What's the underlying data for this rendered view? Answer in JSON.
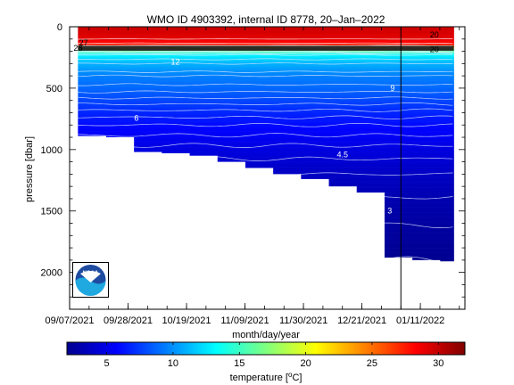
{
  "chart_data": {
    "type": "heatmap",
    "title": "WMO ID 4903392, internal ID 8778, 20–Jan–2022",
    "xlabel": "month/day/year",
    "ylabel": "pressure [dbar]",
    "colorbar_label_text": "temperature [",
    "colorbar_label_sup": "o",
    "colorbar_label_unit": "C]",
    "x_range": [
      "2021-09-07",
      "2022-01-27"
    ],
    "x_ticks": [
      "09/07/2021",
      "09/28/2021",
      "10/19/2021",
      "11/09/2021",
      "11/30/2021",
      "12/21/2021",
      "01/11/2022"
    ],
    "y_range": [
      2300,
      0
    ],
    "y_ticks": [
      0,
      500,
      1000,
      1500,
      2000
    ],
    "color_range": [
      2,
      32
    ],
    "colorbar_ticks": [
      5,
      10,
      15,
      20,
      25,
      30
    ],
    "colormap": "jet",
    "series": [
      {
        "start": "2021-09-10",
        "max_depth": 890
      },
      {
        "start": "2021-09-20",
        "max_depth": 900
      },
      {
        "start": "2021-09-30",
        "max_depth": 1020
      },
      {
        "start": "2021-10-10",
        "max_depth": 1030
      },
      {
        "start": "2021-10-20",
        "max_depth": 1050
      },
      {
        "start": "2021-10-30",
        "max_depth": 1100
      },
      {
        "start": "2021-11-09",
        "max_depth": 1150
      },
      {
        "start": "2021-11-19",
        "max_depth": 1200
      },
      {
        "start": "2021-11-29",
        "max_depth": 1240
      },
      {
        "start": "2021-12-09",
        "max_depth": 1300
      },
      {
        "start": "2021-12-19",
        "max_depth": 1350
      },
      {
        "start": "2021-12-29",
        "max_depth": 1880
      },
      {
        "start": "2022-01-08",
        "max_depth": 1900
      },
      {
        "start": "2022-01-18",
        "end": "2022-01-23",
        "max_depth": 1910
      }
    ],
    "temperature_profile": [
      {
        "p": 0,
        "t": 29.8
      },
      {
        "p": 100,
        "t": 29.0
      },
      {
        "p": 150,
        "t": 27.5
      },
      {
        "p": 170,
        "t": 21
      },
      {
        "p": 190,
        "t": 17
      },
      {
        "p": 230,
        "t": 13
      },
      {
        "p": 300,
        "t": 11
      },
      {
        "p": 400,
        "t": 9.5
      },
      {
        "p": 500,
        "t": 8.8
      },
      {
        "p": 600,
        "t": 7.8
      },
      {
        "p": 700,
        "t": 6.8
      },
      {
        "p": 800,
        "t": 6.0
      },
      {
        "p": 1000,
        "t": 4.8
      },
      {
        "p": 1200,
        "t": 4.0
      },
      {
        "p": 1500,
        "t": 3.2
      },
      {
        "p": 1900,
        "t": 2.5
      }
    ],
    "contour_levels": [
      2.5,
      3,
      3.5,
      4,
      4.5,
      5,
      5.5,
      6,
      6.5,
      7,
      7.5,
      8,
      8.5,
      9,
      9.5,
      10,
      11,
      12,
      13,
      14,
      15,
      16,
      17,
      18,
      19,
      20,
      21,
      22,
      23,
      24,
      25,
      26,
      27,
      28,
      29
    ],
    "contour_labels": [
      {
        "text": "20",
        "x": "2022-01-16",
        "p": 65
      },
      {
        "text": "20",
        "x": "2022-01-16",
        "p": 185
      },
      {
        "text": "27",
        "x": "2021-09-12",
        "p": 130
      },
      {
        "text": "28",
        "x": "2021-09-10",
        "p": 175
      },
      {
        "text": "12",
        "x": "2021-10-15",
        "p": 285
      },
      {
        "text": "9",
        "x": "2022-01-01",
        "p": 500
      },
      {
        "text": "6",
        "x": "2021-10-01",
        "p": 745
      },
      {
        "text": "4.5",
        "x": "2021-12-14",
        "p": 1040
      },
      {
        "text": "3",
        "x": "2021-12-31",
        "p": 1500
      }
    ],
    "current_date_marker": "2022-01-04",
    "grid": false,
    "legend": "none"
  },
  "logo": {
    "name": "noaa-logo",
    "text": "NOAA"
  }
}
